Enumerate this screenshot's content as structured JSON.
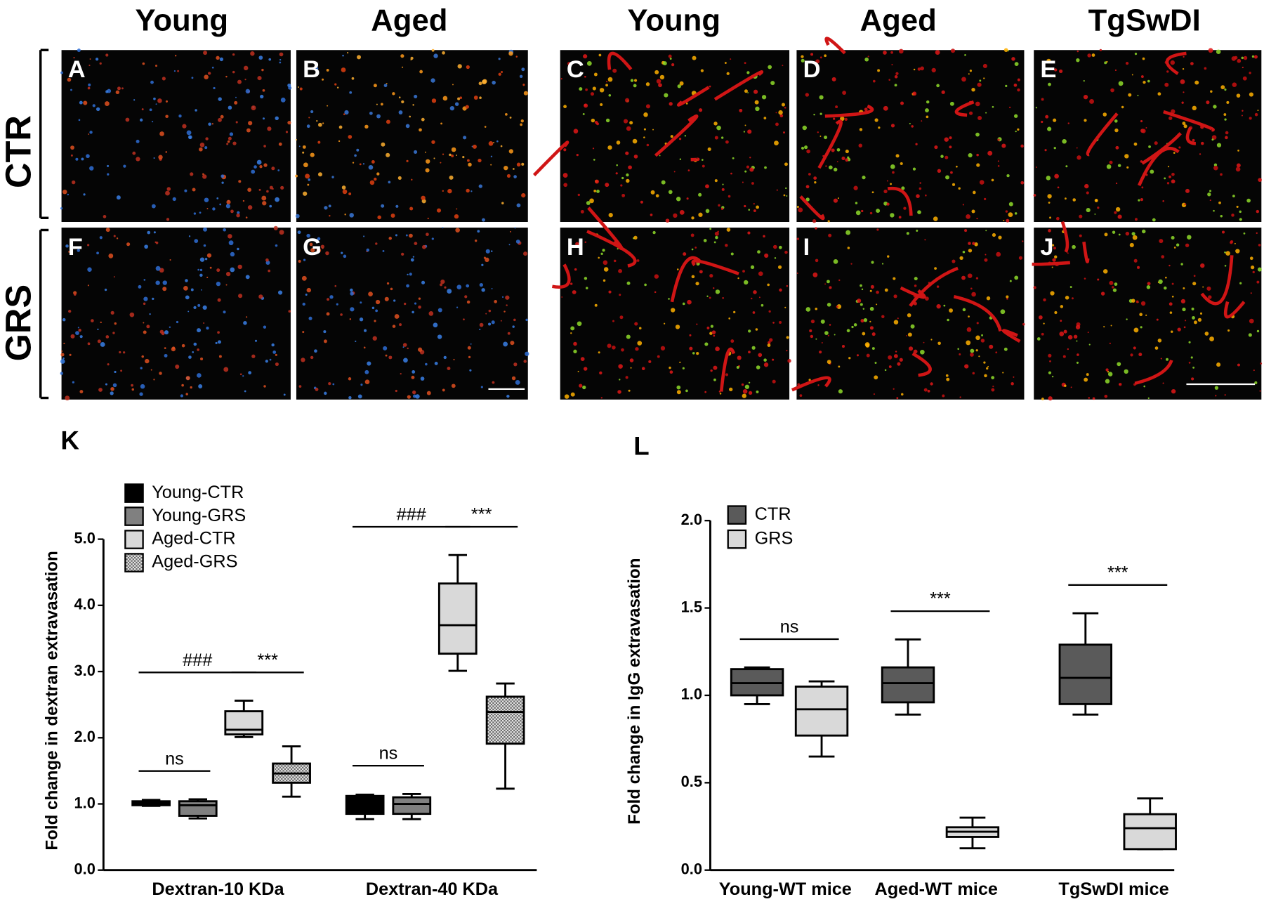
{
  "panels": {
    "column_labels_left": [
      "Young",
      "Aged"
    ],
    "column_labels_right": [
      "Young",
      "Aged",
      "TgSwDI"
    ],
    "row_labels": [
      "CTR",
      "GRS"
    ],
    "image_letters": [
      "A",
      "B",
      "C",
      "D",
      "E",
      "F",
      "G",
      "H",
      "I",
      "J"
    ]
  },
  "chart_data": [
    {
      "type": "box",
      "panel_label": "K",
      "y_label": "Fold change in dextran extravasation",
      "categories": [
        "Dextran-10 KDa",
        "Dextran-40 KDa"
      ],
      "ylim": [
        0,
        5
      ],
      "yticks": [
        {
          "value": 0,
          "label": "0.0"
        },
        {
          "value": 1,
          "label": "1.0"
        },
        {
          "value": 2,
          "label": "2.0"
        },
        {
          "value": 3,
          "label": "3.0"
        },
        {
          "value": 4,
          "label": "4.0"
        },
        {
          "value": 5,
          "label": "5.0"
        }
      ],
      "legend": "upper left",
      "series": [
        {
          "name": "Young-CTR",
          "color": "#000000",
          "min": [
            0.97,
            0.77
          ],
          "q1": [
            0.98,
            0.85
          ],
          "median": [
            1.01,
            1.0
          ],
          "q3": [
            1.04,
            1.12
          ],
          "max": [
            1.06,
            1.14
          ]
        },
        {
          "name": "Young-GRS",
          "color": "#808080",
          "min": [
            0.78,
            0.77
          ],
          "q1": [
            0.82,
            0.85
          ],
          "median": [
            0.98,
            1.0
          ],
          "q3": [
            1.04,
            1.1
          ],
          "max": [
            1.07,
            1.15
          ]
        },
        {
          "name": "Aged-CTR",
          "color": "#d9d9d9",
          "min": [
            2.01,
            3.01
          ],
          "q1": [
            2.05,
            3.27
          ],
          "median": [
            2.12,
            3.7
          ],
          "q3": [
            2.4,
            4.33
          ],
          "max": [
            2.56,
            4.76
          ]
        },
        {
          "name": "Aged-GRS",
          "color": "#bdbdbd",
          "pattern": "checker",
          "min": [
            1.11,
            1.23
          ],
          "q1": [
            1.32,
            1.91
          ],
          "median": [
            1.46,
            2.39
          ],
          "q3": [
            1.61,
            2.62
          ],
          "max": [
            1.87,
            2.82
          ]
        }
      ],
      "comparisons": [
        {
          "category": 0,
          "series": [
            0,
            1
          ],
          "label": "ns"
        },
        {
          "category": 0,
          "series": [
            0,
            2
          ],
          "label": "###"
        },
        {
          "category": 0,
          "series": [
            2,
            3
          ],
          "label": "***"
        },
        {
          "category": 1,
          "series": [
            0,
            1
          ],
          "label": "ns"
        },
        {
          "category": 1,
          "series": [
            0,
            2
          ],
          "label": "###"
        },
        {
          "category": 1,
          "series": [
            2,
            3
          ],
          "label": "***"
        }
      ]
    },
    {
      "type": "box",
      "panel_label": "L",
      "y_label": "Fold change in IgG extravasation",
      "categories": [
        "Young-WT mice",
        "Aged-WT mice",
        "TgSwDI mice"
      ],
      "ylim": [
        0,
        2
      ],
      "yticks": [
        {
          "value": 0,
          "label": "0.0"
        },
        {
          "value": 0.5,
          "label": "0.5"
        },
        {
          "value": 1,
          "label": "1.0"
        },
        {
          "value": 1.5,
          "label": "1.5"
        },
        {
          "value": 2,
          "label": "2.0"
        }
      ],
      "legend": "upper left",
      "series": [
        {
          "name": "CTR",
          "color": "#5a5a5a",
          "min": [
            0.95,
            0.89,
            0.89
          ],
          "q1": [
            1.0,
            0.96,
            0.95
          ],
          "median": [
            1.07,
            1.07,
            1.1
          ],
          "q3": [
            1.15,
            1.16,
            1.29
          ],
          "max": [
            1.16,
            1.32,
            1.47
          ]
        },
        {
          "name": "GRS",
          "color": "#d9d9d9",
          "min": [
            0.65,
            0.125,
            0.12
          ],
          "q1": [
            0.77,
            0.19,
            0.12
          ],
          "median": [
            0.92,
            0.22,
            0.24
          ],
          "q3": [
            1.05,
            0.245,
            0.32
          ],
          "max": [
            1.08,
            0.3,
            0.41
          ]
        }
      ],
      "comparisons": [
        {
          "category": 0,
          "series": [
            0,
            1
          ],
          "label": "ns"
        },
        {
          "category": 1,
          "series": [
            0,
            1
          ],
          "label": "***"
        },
        {
          "category": 2,
          "series": [
            0,
            1
          ],
          "label": "***"
        }
      ]
    }
  ]
}
